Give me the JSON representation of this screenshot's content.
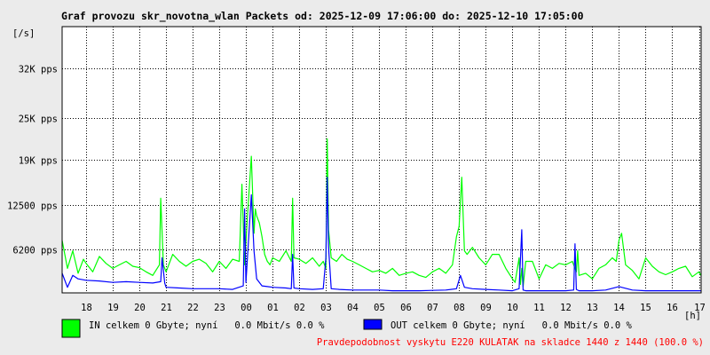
{
  "chart_data": {
    "type": "line",
    "title": "Graf provozu skr_novotna_wlan Packets od: 2025-12-09 17:06:00 do: 2025-12-10 17:05:00",
    "y_unit_label": "[/s]",
    "x_unit_label": "[h]",
    "y_ticks": [
      {
        "value": 6200,
        "label": "6200 pps"
      },
      {
        "value": 12500,
        "label": "12500 pps"
      },
      {
        "value": 19000,
        "label": "19K pps"
      },
      {
        "value": 25000,
        "label": "25K pps"
      },
      {
        "value": 32000,
        "label": "32K pps"
      }
    ],
    "ylim": [
      0,
      38000
    ],
    "x_ticks": [
      {
        "hour": 18,
        "label": "18"
      },
      {
        "hour": 19,
        "label": "19"
      },
      {
        "hour": 20,
        "label": "20"
      },
      {
        "hour": 21,
        "label": "21"
      },
      {
        "hour": 22,
        "label": "22"
      },
      {
        "hour": 23,
        "label": "23"
      },
      {
        "hour": 24,
        "label": "00"
      },
      {
        "hour": 25,
        "label": "01"
      },
      {
        "hour": 26,
        "label": "02"
      },
      {
        "hour": 27,
        "label": "03"
      },
      {
        "hour": 28,
        "label": "04"
      },
      {
        "hour": 29,
        "label": "05"
      },
      {
        "hour": 30,
        "label": "06"
      },
      {
        "hour": 31,
        "label": "07"
      },
      {
        "hour": 32,
        "label": "08"
      },
      {
        "hour": 33,
        "label": "09"
      },
      {
        "hour": 34,
        "label": "10"
      },
      {
        "hour": 35,
        "label": "11"
      },
      {
        "hour": 36,
        "label": "12"
      },
      {
        "hour": 37,
        "label": "13"
      },
      {
        "hour": 38,
        "label": "14"
      },
      {
        "hour": 39,
        "label": "15"
      },
      {
        "hour": 40,
        "label": "16"
      },
      {
        "hour": 41,
        "label": "17"
      }
    ],
    "xlim": [
      17.1,
      41.083
    ],
    "grid": true,
    "series": [
      {
        "name": "IN",
        "color": "#00ff00",
        "x": [
          17.1,
          17.3,
          17.5,
          17.7,
          17.9,
          18.0,
          18.25,
          18.5,
          18.75,
          19.0,
          19.25,
          19.5,
          19.75,
          20.0,
          20.25,
          20.5,
          20.75,
          20.8,
          20.9,
          21.0,
          21.25,
          21.5,
          21.75,
          22.0,
          22.25,
          22.5,
          22.75,
          23.0,
          23.25,
          23.5,
          23.75,
          23.85,
          23.95,
          24.05,
          24.2,
          24.3,
          24.35,
          24.4,
          24.5,
          24.6,
          24.7,
          24.8,
          24.9,
          25.0,
          25.25,
          25.5,
          25.7,
          25.75,
          25.8,
          26.0,
          26.25,
          26.5,
          26.75,
          26.9,
          27.0,
          27.05,
          27.1,
          27.2,
          27.4,
          27.6,
          27.8,
          28.0,
          28.25,
          28.5,
          28.75,
          29.0,
          29.25,
          29.5,
          29.75,
          30.0,
          30.25,
          30.5,
          30.75,
          31.0,
          31.25,
          31.5,
          31.75,
          31.9,
          32.0,
          32.1,
          32.2,
          32.3,
          32.5,
          32.75,
          33.0,
          33.25,
          33.5,
          33.75,
          34.0,
          34.1,
          34.25,
          34.3,
          34.35,
          34.4,
          34.5,
          34.75,
          35.0,
          35.25,
          35.5,
          35.75,
          36.0,
          36.25,
          36.4,
          36.45,
          36.5,
          36.75,
          37.0,
          37.25,
          37.5,
          37.75,
          37.9,
          38.0,
          38.1,
          38.25,
          38.5,
          38.75,
          39.0,
          39.25,
          39.5,
          39.75,
          40.0,
          40.25,
          40.5,
          40.75,
          41.0,
          41.08
        ],
        "values": [
          7500,
          3500,
          6000,
          2800,
          4800,
          4200,
          3000,
          5200,
          4200,
          3500,
          4000,
          4500,
          3800,
          3600,
          3000,
          2500,
          4000,
          13500,
          4000,
          3000,
          5500,
          4500,
          3800,
          4500,
          4800,
          4200,
          3000,
          4500,
          3500,
          4800,
          4500,
          15500,
          4000,
          10500,
          19500,
          8500,
          12000,
          11000,
          10000,
          8000,
          5500,
          4500,
          4000,
          5000,
          4500,
          6000,
          4500,
          13500,
          5000,
          4800,
          4200,
          5000,
          3800,
          4500,
          3500,
          22000,
          9000,
          5000,
          4500,
          5500,
          4800,
          4500,
          4000,
          3500,
          3000,
          3200,
          2800,
          3500,
          2500,
          2800,
          3000,
          2500,
          2200,
          3000,
          3500,
          2800,
          4000,
          8000,
          9500,
          16500,
          6000,
          5500,
          6500,
          5000,
          4000,
          5500,
          5500,
          3500,
          2000,
          1500,
          5000,
          1200,
          3500,
          900,
          4500,
          4500,
          2000,
          4000,
          3500,
          4200,
          4000,
          4500,
          3000,
          6000,
          2500,
          2800,
          2000,
          3500,
          4000,
          5000,
          4500,
          7500,
          8500,
          4000,
          3200,
          2000,
          5000,
          3800,
          3000,
          2600,
          3000,
          3500,
          3800,
          2300,
          3000,
          2500
        ]
      },
      {
        "name": "OUT",
        "color": "#0000ff",
        "x": [
          17.1,
          17.3,
          17.5,
          17.7,
          18.0,
          18.5,
          19.0,
          19.5,
          20.0,
          20.5,
          20.8,
          20.85,
          20.95,
          21.0,
          21.5,
          22.0,
          22.5,
          23.0,
          23.5,
          23.9,
          23.95,
          24.0,
          24.2,
          24.3,
          24.4,
          24.6,
          24.8,
          25.0,
          25.5,
          25.7,
          25.75,
          25.8,
          26.0,
          26.5,
          26.9,
          27.0,
          27.05,
          27.1,
          27.2,
          27.5,
          28.0,
          28.5,
          29.0,
          29.5,
          30.0,
          30.5,
          31.0,
          31.5,
          31.9,
          32.05,
          32.2,
          32.5,
          33.0,
          33.5,
          34.0,
          34.25,
          34.35,
          34.4,
          34.5,
          35.0,
          35.5,
          36.0,
          36.3,
          36.35,
          36.4,
          36.5,
          37.0,
          37.5,
          38.0,
          38.5,
          39.0,
          39.5,
          40.0,
          40.5,
          41.0,
          41.08
        ],
        "values": [
          2800,
          800,
          2500,
          2000,
          1800,
          1700,
          1500,
          1600,
          1500,
          1400,
          1600,
          5000,
          1400,
          800,
          700,
          600,
          600,
          600,
          500,
          1000,
          12000,
          1500,
          14000,
          6000,
          2000,
          1000,
          900,
          800,
          700,
          600,
          5500,
          700,
          600,
          500,
          600,
          5000,
          16500,
          6500,
          600,
          500,
          400,
          400,
          400,
          300,
          300,
          300,
          350,
          400,
          600,
          2500,
          800,
          600,
          500,
          400,
          300,
          600,
          9000,
          400,
          300,
          300,
          300,
          300,
          400,
          7000,
          500,
          300,
          300,
          400,
          900,
          400,
          300,
          300,
          300,
          300,
          300,
          300
        ]
      }
    ]
  },
  "legend": {
    "in_label": "IN celkem 0 Gbyte; nyní   0.0 Mbit/s 0.0 %",
    "out_label": "OUT celkem 0 Gbyte; nyní   0.0 Mbit/s 0.0 %"
  },
  "footer": {
    "text": "Pravdepodobnost vyskytu E220 KULATAK na skladce 1440 z 1440 (100.0 %)",
    "color": "#ff0000"
  }
}
